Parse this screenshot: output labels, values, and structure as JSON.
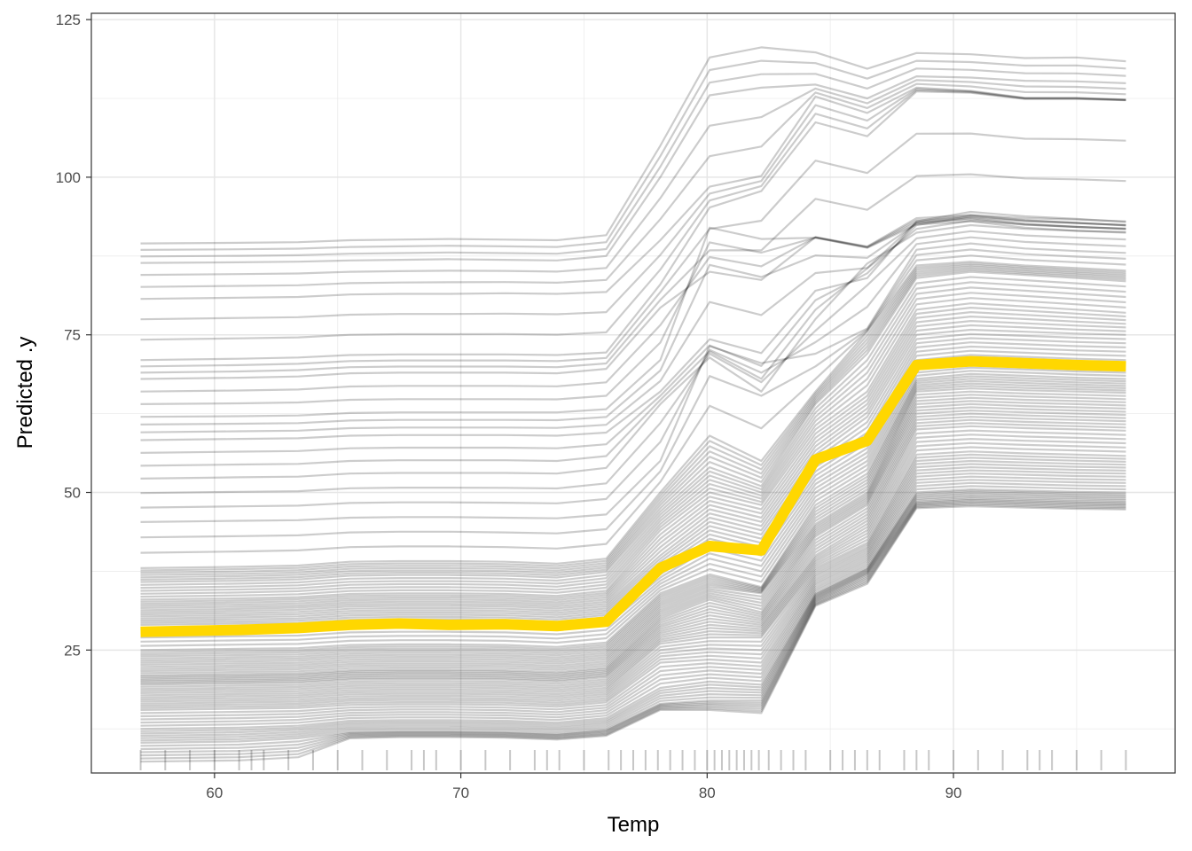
{
  "chart_data": {
    "type": "line",
    "subtype": "ice-plot",
    "xlabel": "Temp",
    "ylabel": "Predicted .y",
    "xlim": [
      55,
      99
    ],
    "ylim": [
      5.5,
      126
    ],
    "x_ticks": [
      60,
      70,
      80,
      90
    ],
    "y_ticks": [
      25,
      50,
      75,
      100,
      125
    ],
    "x_minor_ticks": [
      65,
      75,
      85,
      95
    ],
    "y_minor_ticks": [
      12.5,
      37.5,
      62.5,
      87.5,
      112.5
    ],
    "grid": true,
    "legend": "none",
    "x_grid": [
      57,
      61,
      63.4,
      65.5,
      67.5,
      69.5,
      71.8,
      73.9,
      75.9,
      78.1,
      80.1,
      82.2,
      84.4,
      86.5,
      88.5,
      90.7,
      92.9,
      95,
      97
    ],
    "ice_lines_sampled": [
      {
        "values": [
          89.5,
          89.6,
          89.7,
          90.0,
          90.1,
          90.2,
          90.1,
          90.0,
          90.8,
          105.0,
          119.0,
          120.6,
          119.8,
          117.2,
          119.7,
          119.5,
          118.9,
          119.0,
          118.4
        ]
      },
      {
        "values": [
          86.4,
          86.5,
          86.6,
          86.8,
          86.9,
          87.0,
          86.9,
          86.8,
          87.5,
          100.0,
          113.0,
          114.2,
          114.7,
          112.5,
          116.0,
          115.8,
          115.3,
          115.2,
          114.9
        ]
      },
      {
        "values": [
          80.7,
          80.9,
          81.0,
          81.4,
          81.5,
          81.5,
          81.6,
          81.5,
          81.8,
          90.0,
          98.5,
          100.2,
          112.8,
          110.2,
          114.2,
          113.7,
          112.6,
          112.6,
          112.3
        ]
      },
      {
        "values": [
          71.0,
          71.2,
          71.4,
          71.8,
          71.9,
          71.9,
          71.9,
          71.8,
          72.2,
          83.0,
          95.2,
          97.8,
          108.7,
          106.5,
          113.6,
          113.4,
          112.4,
          112.4,
          112.2
        ]
      },
      {
        "values": [
          68.0,
          68.2,
          68.4,
          68.9,
          69.0,
          69.0,
          69.0,
          68.9,
          69.6,
          79.3,
          85.0,
          83.7,
          90.5,
          89.0,
          93.5,
          94.0,
          93.5,
          93.3,
          93.0
        ]
      },
      {
        "values": [
          62.0,
          62.1,
          62.2,
          62.6,
          62.7,
          62.7,
          62.7,
          62.7,
          63.2,
          71.0,
          92.0,
          90.2,
          90.4,
          88.8,
          92.5,
          93.0,
          92.0,
          91.5,
          91.3
        ]
      },
      {
        "values": [
          58.3,
          58.5,
          58.6,
          59.0,
          59.1,
          59.1,
          59.1,
          59.0,
          59.5,
          66.0,
          74.3,
          72.1,
          82.0,
          84.0,
          93.0,
          94.5,
          93.8,
          93.4,
          92.9
        ]
      },
      {
        "values": [
          52.2,
          52.4,
          52.5,
          53.0,
          53.1,
          53.1,
          53.1,
          53.0,
          53.9,
          64.0,
          71.4,
          66.0,
          77.5,
          86.3,
          91.2,
          92.4,
          91.8,
          91.5,
          91.2
        ]
      },
      {
        "values": [
          45.3,
          45.5,
          45.6,
          46.0,
          46.1,
          46.1,
          46.0,
          45.9,
          46.5,
          55.0,
          73.2,
          70.5,
          72.0,
          76.0,
          88.5,
          89.5,
          88.7,
          88.3,
          88.0
        ]
      },
      {
        "values": [
          38.0,
          38.2,
          38.4,
          39.0,
          39.1,
          39.1,
          39.0,
          38.7,
          39.5,
          50.0,
          59.0,
          55.0,
          66.0,
          75.5,
          86.0,
          86.6,
          86.0,
          85.6,
          85.2
        ]
      },
      {
        "values": [
          35.8,
          36.0,
          36.2,
          36.8,
          36.9,
          36.9,
          36.8,
          36.5,
          37.4,
          47.0,
          54.0,
          51.0,
          64.0,
          72.0,
          84.0,
          85.0,
          84.5,
          84.0,
          83.5
        ]
      },
      {
        "values": [
          33.0,
          33.2,
          33.4,
          33.9,
          34.0,
          34.0,
          33.9,
          33.6,
          34.4,
          44.0,
          50.0,
          48.0,
          60.0,
          66.0,
          79.0,
          80.0,
          79.5,
          79.0,
          78.5
        ]
      },
      {
        "values": [
          31.0,
          31.2,
          31.4,
          31.9,
          32.0,
          32.0,
          31.9,
          31.6,
          32.3,
          40.0,
          46.0,
          44.0,
          56.0,
          62.0,
          75.0,
          75.8,
          75.5,
          75.2,
          75.0
        ]
      },
      {
        "values": [
          29.0,
          29.2,
          29.3,
          29.8,
          29.9,
          29.9,
          29.8,
          29.5,
          30.2,
          37.0,
          42.0,
          40.0,
          52.0,
          57.0,
          71.0,
          71.8,
          71.5,
          71.2,
          71.0
        ]
      },
      {
        "values": [
          25.0,
          25.2,
          25.3,
          25.8,
          25.9,
          25.9,
          25.8,
          25.5,
          26.2,
          34.0,
          37.0,
          35.0,
          48.0,
          53.0,
          68.0,
          68.8,
          68.5,
          68.2,
          68.0
        ]
      },
      {
        "values": [
          23.0,
          23.2,
          23.3,
          23.8,
          23.9,
          23.9,
          23.8,
          23.5,
          24.2,
          32.0,
          35.0,
          34.0,
          45.0,
          50.0,
          66.0,
          66.5,
          66.2,
          66.0,
          65.8
        ]
      },
      {
        "values": [
          21.0,
          21.2,
          21.3,
          21.8,
          21.9,
          21.9,
          21.8,
          21.5,
          22.2,
          30.0,
          33.0,
          31.0,
          43.0,
          48.0,
          63.0,
          63.5,
          63.2,
          63.0,
          62.8
        ]
      },
      {
        "values": [
          19.5,
          19.7,
          19.8,
          20.3,
          20.4,
          20.4,
          20.3,
          20.0,
          20.7,
          28.0,
          30.0,
          29.0,
          40.0,
          45.0,
          60.0,
          60.5,
          60.2,
          60.0,
          59.8
        ]
      },
      {
        "values": [
          17.5,
          17.7,
          17.8,
          18.3,
          18.4,
          18.4,
          18.3,
          18.0,
          18.7,
          26.0,
          27.0,
          27.0,
          38.0,
          42.0,
          56.0,
          56.5,
          56.2,
          56.0,
          55.8
        ]
      },
      {
        "values": [
          15.5,
          15.7,
          15.8,
          16.3,
          16.4,
          16.4,
          16.3,
          16.0,
          16.7,
          23.0,
          23.5,
          23.0,
          36.0,
          40.0,
          53.0,
          53.5,
          53.3,
          53.1,
          53.0
        ]
      },
      {
        "values": [
          12.5,
          12.7,
          13.0,
          13.8,
          13.9,
          13.9,
          13.8,
          13.5,
          14.2,
          19.0,
          20.0,
          19.5,
          34.0,
          38.0,
          50.0,
          50.5,
          50.3,
          50.1,
          50.0
        ]
      },
      {
        "values": [
          10.3,
          10.5,
          11.0,
          12.0,
          12.1,
          12.1,
          12.0,
          11.7,
          12.4,
          16.5,
          17.0,
          17.0,
          33.0,
          37.0,
          48.5,
          49.0,
          48.8,
          48.6,
          48.5
        ]
      },
      {
        "values": [
          7.3,
          7.5,
          8.0,
          11.0,
          11.2,
          11.2,
          11.1,
          10.8,
          11.4,
          15.5,
          15.5,
          15.0,
          32.0,
          35.5,
          47.5,
          47.8,
          47.6,
          47.4,
          47.3
        ]
      }
    ],
    "average_line": {
      "color": "#FFD700",
      "values": [
        27.9,
        28.2,
        28.5,
        29.0,
        29.2,
        29.0,
        29.1,
        28.8,
        29.5,
        38.0,
        41.5,
        40.8,
        55.2,
        58.2,
        70.2,
        70.8,
        70.5,
        70.2,
        70.0
      ]
    },
    "rug_x": [
      57.0,
      58.0,
      59.0,
      60.0,
      61.0,
      61.5,
      62.0,
      63.0,
      64.0,
      65.0,
      66.0,
      67.0,
      68.0,
      68.5,
      69.0,
      70.0,
      71.0,
      72.0,
      73.0,
      73.5,
      74.0,
      75.0,
      76.0,
      76.5,
      77.0,
      77.5,
      78.0,
      78.5,
      79.0,
      79.5,
      80.0,
      80.3,
      80.6,
      80.9,
      81.2,
      81.5,
      81.8,
      82.1,
      82.5,
      83.0,
      83.5,
      84.0,
      85.0,
      85.5,
      86.0,
      86.5,
      87.0,
      88.0,
      88.5,
      89.0,
      90.0,
      91.0,
      92.0,
      93.0,
      93.5,
      94.0,
      95.0,
      96.0,
      97.0
    ],
    "colors": {
      "ice_line": "#000000",
      "average": "#FFD700",
      "rug": "#000000"
    }
  }
}
